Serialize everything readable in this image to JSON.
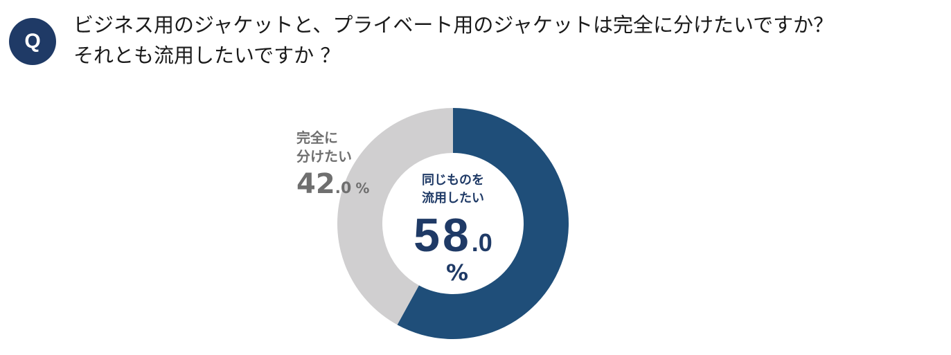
{
  "badge": {
    "label": "Q"
  },
  "question": {
    "line1": "ビジネス用のジャケットと、プライベート用のジャケットは完全に分けたいですか？",
    "line2": "それとも流用したいですか ？"
  },
  "chart_data": {
    "type": "pie",
    "style": "donut",
    "start_angle_deg": 0,
    "direction": "clockwise",
    "slices": [
      {
        "label_line1": "同じものを",
        "label_line2": "流用したい",
        "value": 58.0,
        "value_int": "58",
        "value_dec": ".0",
        "unit": "%",
        "color": "#1f4e79"
      },
      {
        "label_line1": "完全に",
        "label_line2": "分けたい",
        "value": 42.0,
        "value_int": "42",
        "value_dec": ".0",
        "unit": "%",
        "color": "#d0cfd0"
      }
    ],
    "text_colors": {
      "major": "#1f3a66",
      "minor": "#6f6f6f"
    }
  }
}
